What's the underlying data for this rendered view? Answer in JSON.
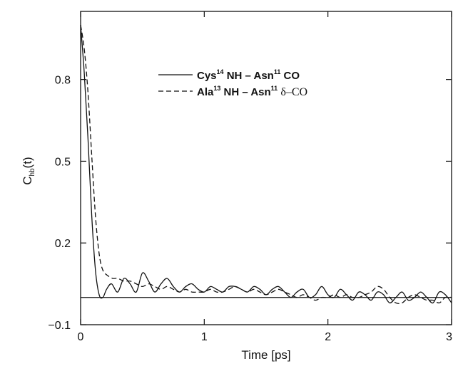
{
  "chart_data": {
    "type": "line",
    "xlabel": "Time [ps]",
    "ylabel": {
      "main": "C",
      "sub": "hb",
      "suffix": "(t)"
    },
    "xlim": [
      0,
      3
    ],
    "ylim": [
      -0.1,
      1.05
    ],
    "xticks": [
      0,
      1,
      2,
      3
    ],
    "xtick_labels": [
      "0",
      "1",
      "2",
      "3"
    ],
    "yticks": [
      -0.1,
      0.2,
      0.5,
      0.8
    ],
    "ytick_labels": [
      "−0.1",
      "0.2",
      "0.5",
      "0.8"
    ],
    "grid": false,
    "legend_position": "top-right",
    "reference_line": {
      "y": 0.0,
      "style": "solid"
    },
    "series": [
      {
        "style": "solid",
        "legend": {
          "res1": "Cys",
          "sup1": "14",
          "grp1": " NH – Asn",
          "sup2": "11",
          "grp2": " CO",
          "greek": ""
        },
        "x": [
          0,
          0.03,
          0.06,
          0.09,
          0.12,
          0.15,
          0.18,
          0.21,
          0.25,
          0.3,
          0.35,
          0.4,
          0.45,
          0.5,
          0.55,
          0.6,
          0.65,
          0.7,
          0.75,
          0.8,
          0.85,
          0.9,
          0.95,
          1.0,
          1.05,
          1.1,
          1.15,
          1.2,
          1.25,
          1.3,
          1.35,
          1.4,
          1.45,
          1.5,
          1.55,
          1.6,
          1.65,
          1.7,
          1.75,
          1.8,
          1.85,
          1.9,
          1.95,
          2.0,
          2.05,
          2.1,
          2.15,
          2.2,
          2.25,
          2.3,
          2.35,
          2.4,
          2.45,
          2.5,
          2.55,
          2.6,
          2.65,
          2.7,
          2.75,
          2.8,
          2.85,
          2.9,
          2.95,
          3.0
        ],
        "y": [
          1.0,
          0.82,
          0.58,
          0.3,
          0.1,
          0.01,
          0.0,
          0.03,
          0.05,
          0.02,
          0.07,
          0.05,
          0.02,
          0.09,
          0.06,
          0.02,
          0.05,
          0.07,
          0.04,
          0.02,
          0.04,
          0.05,
          0.03,
          0.02,
          0.04,
          0.03,
          0.02,
          0.04,
          0.04,
          0.03,
          0.02,
          0.04,
          0.03,
          0.01,
          0.03,
          0.04,
          0.02,
          0.0,
          0.02,
          0.03,
          0.0,
          0.01,
          0.04,
          0.01,
          0.0,
          0.03,
          0.01,
          -0.01,
          0.02,
          0.01,
          -0.01,
          0.02,
          0.01,
          -0.02,
          0.0,
          0.02,
          -0.01,
          0.0,
          0.02,
          0.0,
          -0.02,
          0.02,
          0.01,
          -0.02
        ]
      },
      {
        "style": "dashed",
        "legend": {
          "res1": "Ala",
          "sup1": "13",
          "grp1": " NH – Asn",
          "sup2": "11",
          "grp2": " ",
          "greek": "δ–CO"
        },
        "x": [
          0,
          0.03,
          0.06,
          0.09,
          0.12,
          0.15,
          0.18,
          0.22,
          0.26,
          0.3,
          0.35,
          0.4,
          0.45,
          0.5,
          0.55,
          0.6,
          0.65,
          0.7,
          0.75,
          0.8,
          0.85,
          0.9,
          0.95,
          1.0,
          1.05,
          1.1,
          1.15,
          1.2,
          1.25,
          1.3,
          1.35,
          1.4,
          1.45,
          1.5,
          1.55,
          1.6,
          1.65,
          1.7,
          1.75,
          1.8,
          1.85,
          1.9,
          1.95,
          2.0,
          2.05,
          2.1,
          2.15,
          2.2,
          2.25,
          2.3,
          2.35,
          2.4,
          2.45,
          2.5,
          2.55,
          2.6,
          2.65,
          2.7,
          2.75,
          2.8,
          2.85,
          2.9,
          2.95,
          3.0
        ],
        "y": [
          1.0,
          0.91,
          0.75,
          0.52,
          0.3,
          0.16,
          0.1,
          0.08,
          0.07,
          0.07,
          0.06,
          0.06,
          0.05,
          0.04,
          0.05,
          0.04,
          0.03,
          0.04,
          0.03,
          0.02,
          0.03,
          0.02,
          0.02,
          0.02,
          0.03,
          0.02,
          0.02,
          0.03,
          0.04,
          0.03,
          0.02,
          0.03,
          0.02,
          0.01,
          0.02,
          0.03,
          0.02,
          0.01,
          0.0,
          0.01,
          0.0,
          -0.01,
          0.0,
          0.0,
          0.01,
          0.0,
          0.01,
          0.0,
          0.0,
          0.01,
          0.02,
          0.04,
          0.03,
          0.0,
          -0.02,
          -0.02,
          0.0,
          0.01,
          0.0,
          -0.01,
          -0.01,
          -0.02,
          0.0,
          0.0
        ]
      }
    ]
  }
}
